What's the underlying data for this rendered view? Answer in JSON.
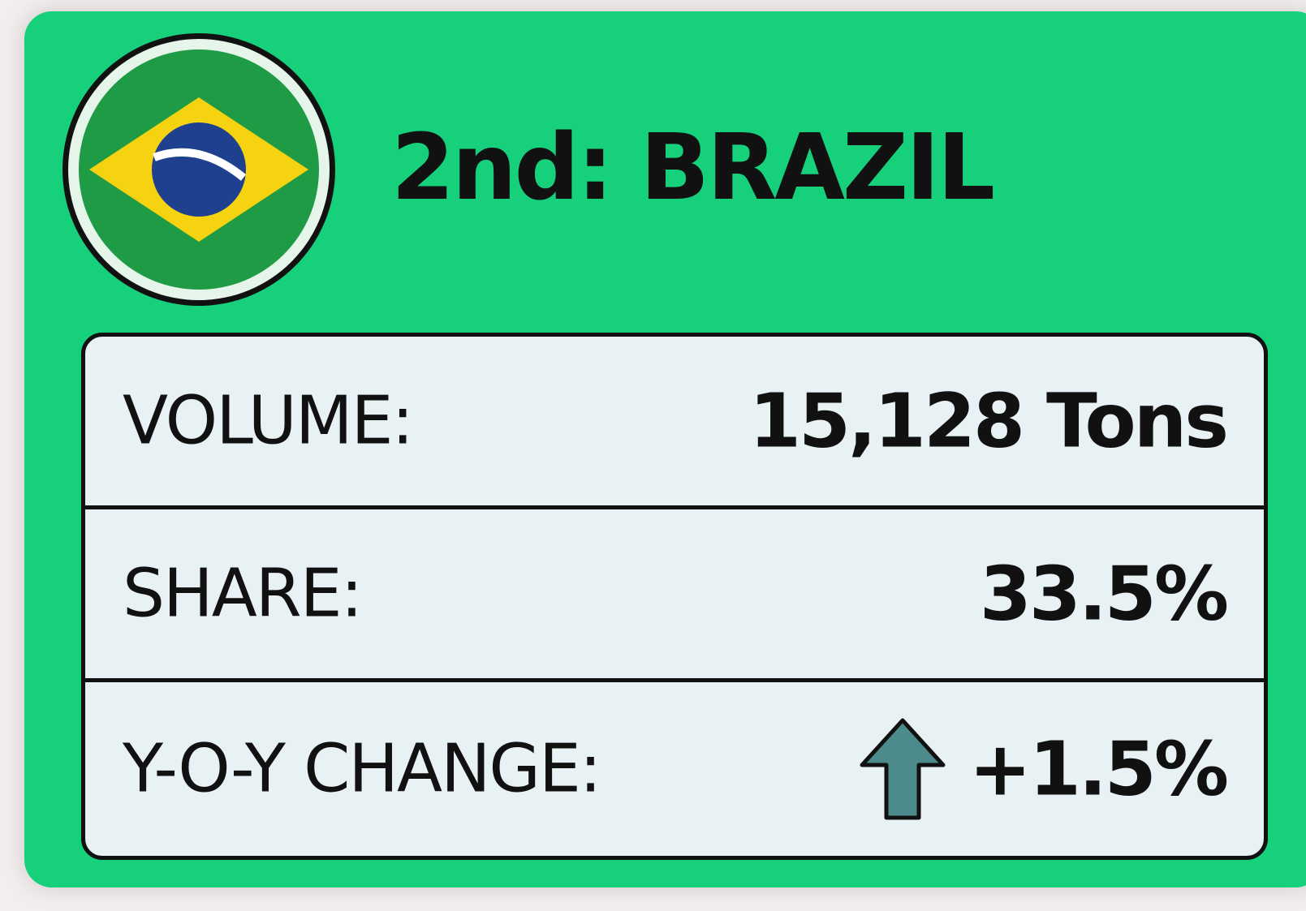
{
  "header": {
    "title": "2nd: BRAZIL"
  },
  "table": {
    "rows": [
      [
        "VOLUME:",
        "15,128 Tons"
      ],
      [
        "SHARE:",
        "33.5%"
      ],
      [
        "Y-O-Y CHANGE:",
        "+1.5%"
      ]
    ]
  }
}
